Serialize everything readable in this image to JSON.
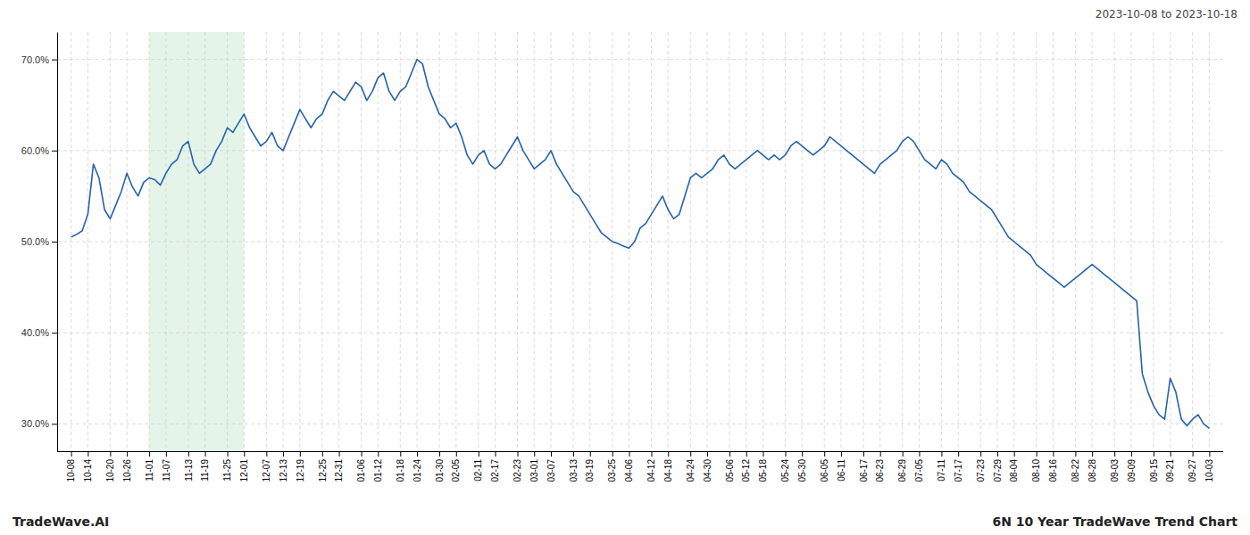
{
  "chart_data": {
    "type": "line",
    "annotations": [
      "2023-10-08 to 2023-10-18",
      "TradeWave.AI",
      "6N 10 Year TradeWave Trend Chart"
    ],
    "color": "#2563a8",
    "grid": true,
    "highlight": {
      "from": "11-01",
      "to": "12-01",
      "color": "#d4edda"
    },
    "ylim": [
      27.0,
      73.0
    ],
    "yticks": [
      {
        "value": 30.0,
        "label": "30.0%"
      },
      {
        "value": 40.0,
        "label": "40.0%"
      },
      {
        "value": 50.0,
        "label": "50.0%"
      },
      {
        "value": 60.0,
        "label": "60.0%"
      },
      {
        "value": 70.0,
        "label": "70.0%"
      }
    ],
    "categories": [
      "10-08",
      null,
      null,
      "10-14",
      null,
      null,
      null,
      "10-20",
      null,
      null,
      "10-26",
      null,
      null,
      null,
      "11-01",
      null,
      null,
      "11-07",
      null,
      null,
      null,
      "11-13",
      null,
      null,
      "11-19",
      null,
      null,
      null,
      "11-25",
      null,
      null,
      "12-01",
      null,
      null,
      null,
      "12-07",
      null,
      null,
      "12-13",
      null,
      null,
      "12-19",
      null,
      null,
      null,
      "12-25",
      null,
      null,
      "12-31",
      null,
      null,
      null,
      "01-06",
      null,
      null,
      "01-12",
      null,
      null,
      null,
      "01-18",
      null,
      null,
      "01-24",
      null,
      null,
      null,
      "01-30",
      null,
      null,
      "02-05",
      null,
      null,
      null,
      "02-11",
      null,
      null,
      "02-17",
      null,
      null,
      null,
      "02-23",
      null,
      null,
      "03-01",
      null,
      null,
      "03-07",
      null,
      null,
      null,
      "03-13",
      null,
      null,
      "03-19",
      null,
      null,
      null,
      "03-25",
      null,
      null,
      "04-06",
      null,
      null,
      null,
      "04-12",
      null,
      null,
      "04-18",
      null,
      null,
      null,
      "04-24",
      null,
      null,
      "04-30",
      null,
      null,
      null,
      "05-06",
      null,
      null,
      "05-12",
      null,
      null,
      "05-18",
      null,
      null,
      null,
      "05-24",
      null,
      null,
      "05-30",
      null,
      null,
      null,
      "06-05",
      null,
      null,
      "06-11",
      null,
      null,
      null,
      "06-17",
      null,
      null,
      "06-23",
      null,
      null,
      null,
      "06-29",
      null,
      null,
      "07-05",
      null,
      null,
      null,
      "07-11",
      null,
      null,
      "07-17",
      null,
      null,
      null,
      "07-23",
      null,
      null,
      "07-29",
      null,
      null,
      "08-04",
      null,
      null,
      null,
      "08-10",
      null,
      null,
      "08-16",
      null,
      null,
      null,
      "08-22",
      null,
      null,
      "08-28",
      null,
      null,
      null,
      "09-03",
      null,
      null,
      "09-09",
      null,
      null,
      null,
      "09-15",
      null,
      null,
      "09-21",
      null,
      null,
      null,
      "09-27",
      null,
      null,
      "10-03"
    ],
    "values": [
      50.5,
      50.8,
      51.2,
      53.0,
      58.5,
      57.0,
      53.5,
      52.5,
      54.0,
      55.5,
      57.5,
      56.0,
      55.0,
      56.5,
      57.0,
      56.8,
      56.2,
      57.5,
      58.5,
      59.0,
      60.5,
      61.0,
      58.5,
      57.5,
      58.0,
      58.5,
      60.0,
      61.0,
      62.5,
      62.0,
      63.0,
      64.0,
      62.5,
      61.5,
      60.5,
      61.0,
      62.0,
      60.5,
      60.0,
      61.5,
      63.0,
      64.5,
      63.5,
      62.5,
      63.5,
      64.0,
      65.5,
      66.5,
      66.0,
      65.5,
      66.5,
      67.5,
      67.0,
      65.5,
      66.5,
      68.0,
      68.5,
      66.5,
      65.5,
      66.5,
      67.0,
      68.5,
      70.0,
      69.5,
      67.0,
      65.5,
      64.0,
      63.5,
      62.5,
      63.0,
      61.5,
      59.5,
      58.5,
      59.5,
      60.0,
      58.5,
      58.0,
      58.5,
      59.5,
      60.5,
      61.5,
      60.0,
      59.0,
      58.0,
      58.5,
      59.0,
      60.0,
      58.5,
      57.5,
      56.5,
      55.5,
      55.0,
      54.0,
      53.0,
      52.0,
      51.0,
      50.5,
      50.0,
      49.8,
      49.5,
      49.3,
      50.0,
      51.5,
      52.0,
      53.0,
      54.0,
      55.0,
      53.5,
      52.5,
      53.0,
      55.0,
      57.0,
      57.5,
      57.0,
      57.5,
      58.0,
      59.0,
      59.5,
      58.5,
      58.0,
      58.5,
      59.0,
      59.5,
      60.0,
      59.5,
      59.0,
      59.5,
      59.0,
      59.5,
      60.5,
      61.0,
      60.5,
      60.0,
      59.5,
      60.0,
      60.5,
      61.5,
      61.0,
      60.5,
      60.0,
      59.5,
      59.0,
      58.5,
      58.0,
      57.5,
      58.5,
      59.0,
      59.5,
      60.0,
      61.0,
      61.5,
      61.0,
      60.0,
      59.0,
      58.5,
      58.0,
      59.0,
      58.5,
      57.5,
      57.0,
      56.5,
      55.5,
      55.0,
      54.5,
      54.0,
      53.5,
      52.5,
      51.5,
      50.5,
      50.0,
      49.5,
      49.0,
      48.5,
      47.5,
      47.0,
      46.5,
      46.0,
      45.5,
      45.0,
      45.5,
      46.0,
      46.5,
      47.0,
      47.5,
      47.0,
      46.5,
      46.0,
      45.5,
      45.0,
      44.5,
      44.0,
      43.5,
      35.5,
      33.5,
      32.0,
      31.0,
      30.5,
      35.0,
      33.5,
      30.5,
      29.8,
      30.5,
      31.0,
      30.0,
      29.5
    ]
  }
}
